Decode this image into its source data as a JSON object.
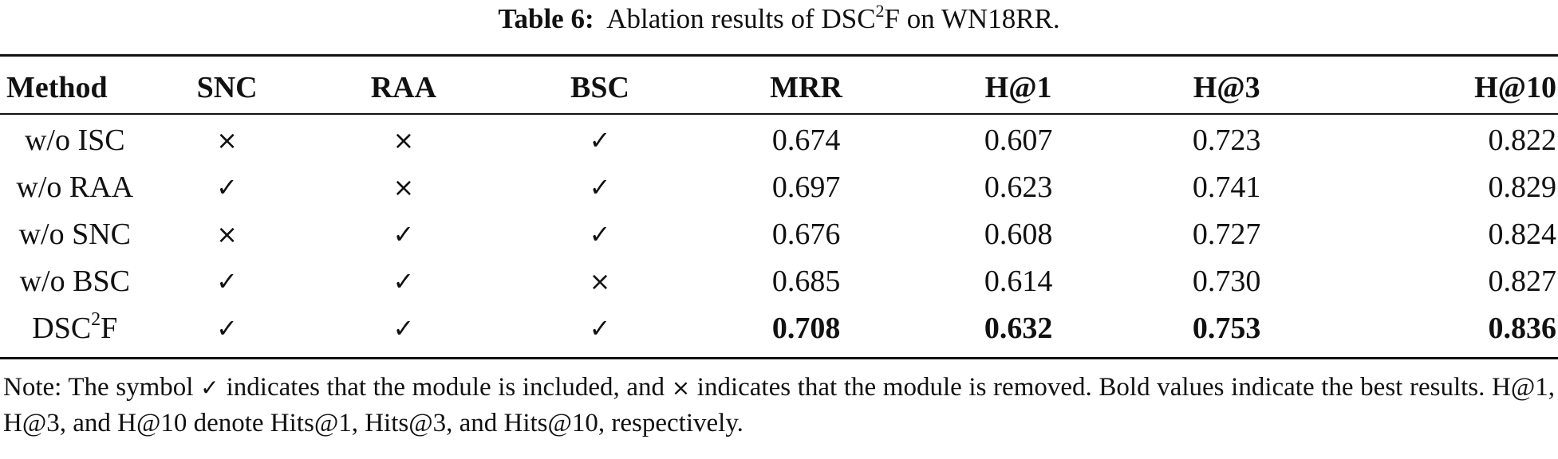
{
  "caption": {
    "label": "Table 6:",
    "text_before": "Ablation results of DSC",
    "superscript": "2",
    "text_after": "F on WN18RR."
  },
  "table": {
    "headers": [
      "Method",
      "SNC",
      "RAA",
      "BSC",
      "MRR",
      "H@1",
      "H@3",
      "H@10"
    ],
    "rows": [
      {
        "method": "w/o ISC",
        "snc": "×",
        "raa": "×",
        "bsc": "✓",
        "mrr": "0.674",
        "h1": "0.607",
        "h3": "0.723",
        "h10": "0.822"
      },
      {
        "method": "w/o RAA",
        "snc": "✓",
        "raa": "×",
        "bsc": "✓",
        "mrr": "0.697",
        "h1": "0.623",
        "h3": "0.741",
        "h10": "0.829"
      },
      {
        "method": "w/o SNC",
        "snc": "×",
        "raa": "✓",
        "bsc": "✓",
        "mrr": "0.676",
        "h1": "0.608",
        "h3": "0.727",
        "h10": "0.824"
      },
      {
        "method": "w/o BSC",
        "snc": "✓",
        "raa": "✓",
        "bsc": "×",
        "mrr": "0.685",
        "h1": "0.614",
        "h3": "0.730",
        "h10": "0.827"
      },
      {
        "method_base": "DSC",
        "method_sup": "2",
        "method_tail": "F",
        "snc": "✓",
        "raa": "✓",
        "bsc": "✓",
        "mrr": "0.708",
        "h1": "0.632",
        "h3": "0.753",
        "h10": "0.836"
      }
    ]
  },
  "note": {
    "part1": "Note: The symbol ",
    "check": "✓",
    "part2": " indicates that the module is included, and ",
    "cross": "×",
    "part3": " indicates that the module is removed. Bold values indicate the best results. H@1, H@3, and H@10 denote Hits@1, Hits@3, and Hits@10, respectively."
  }
}
